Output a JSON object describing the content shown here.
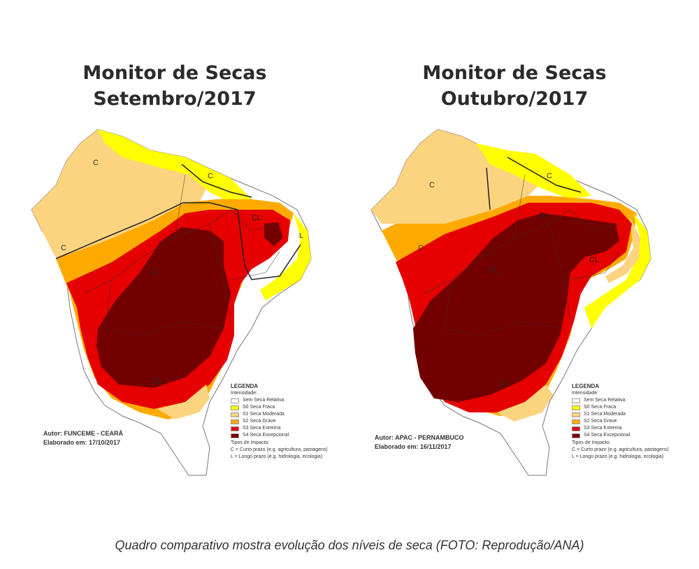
{
  "maps": [
    {
      "title_line1": "Monitor de Secas",
      "title_line2": "Setembro/2017",
      "author": "Autor: FUNCEME - CEARÁ",
      "date": "Elaborado em: 17/10/2017",
      "labels": [
        "C",
        "C",
        "C",
        "CL",
        "CL",
        "CL",
        "L"
      ]
    },
    {
      "title_line1": "Monitor de Secas",
      "title_line2": "Outubro/2017",
      "author": "Autor: APAC - PERNAMBUCO",
      "date": "Elaborado em: 16/11/2017",
      "labels": [
        "C",
        "C",
        "C",
        "CL",
        "CL",
        "CL",
        "CL"
      ]
    }
  ],
  "legend": {
    "title": "LEGENDA",
    "intensity_label": "Intensidade:",
    "items": [
      {
        "label": "Sem Seca Relativa",
        "color": "#ffffff"
      },
      {
        "label": "S0 Seca Fraca",
        "color": "#ffff00"
      },
      {
        "label": "S1 Seca Moderada",
        "color": "#fcd37f"
      },
      {
        "label": "S2 Seca Grave",
        "color": "#ffaa00"
      },
      {
        "label": "S3 Seca Extrema",
        "color": "#e60000"
      },
      {
        "label": "S4 Seca Excepcional",
        "color": "#730000"
      }
    ],
    "impact_title": "Tipos de Impacto:",
    "impact_c": "C = Curto prazo (e.g. agricultura, pastagens)",
    "impact_l": "L = Longo prazo (e.g. hidrologia, ecologia)"
  },
  "caption": "Quadro comparativo mostra evolução dos níveis de seca (FOTO: Reprodução/ANA)"
}
